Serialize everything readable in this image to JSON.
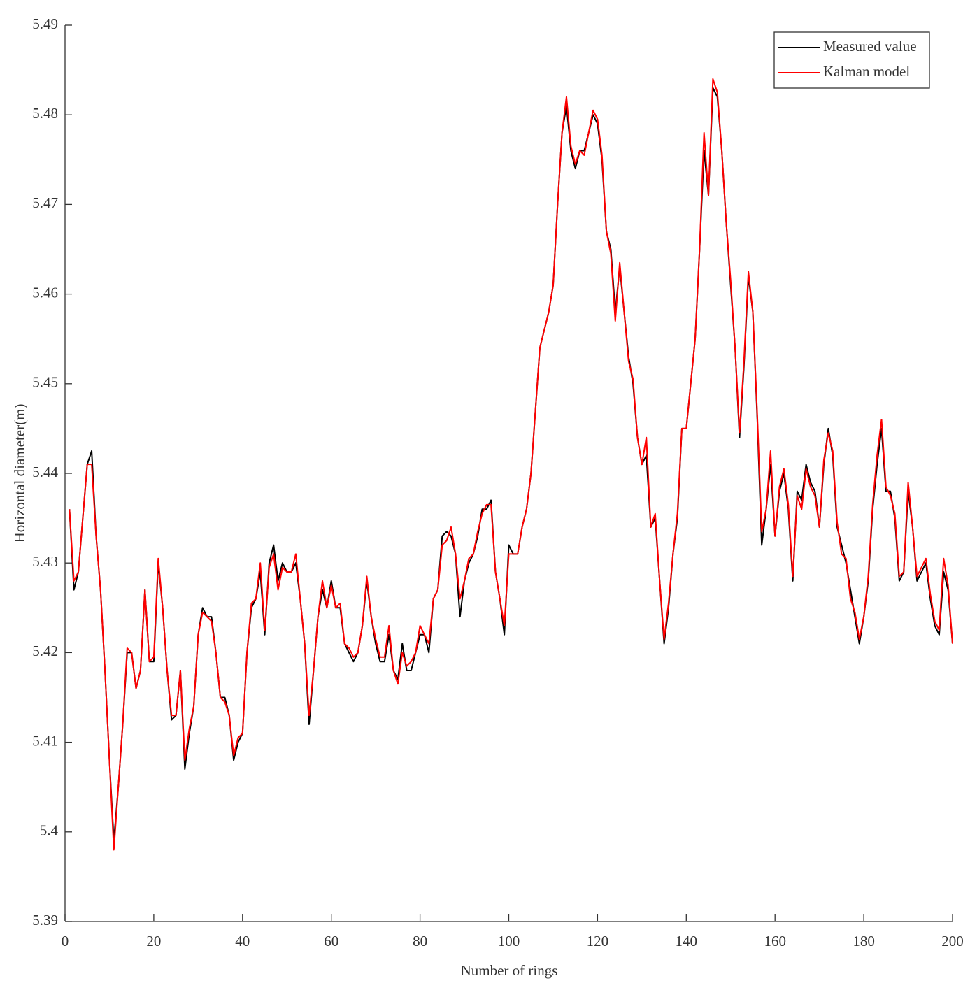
{
  "chart_data": {
    "type": "line",
    "xlabel": "Number of rings",
    "ylabel": "Horizontal diameter(m)",
    "x": [
      1,
      2,
      3,
      4,
      5,
      6,
      7,
      8,
      9,
      10,
      11,
      12,
      13,
      14,
      15,
      16,
      17,
      18,
      19,
      20,
      21,
      22,
      23,
      24,
      25,
      26,
      27,
      28,
      29,
      30,
      31,
      32,
      33,
      34,
      35,
      36,
      37,
      38,
      39,
      40,
      41,
      42,
      43,
      44,
      45,
      46,
      47,
      48,
      49,
      50,
      51,
      52,
      53,
      54,
      55,
      56,
      57,
      58,
      59,
      60,
      61,
      62,
      63,
      64,
      65,
      66,
      67,
      68,
      69,
      70,
      71,
      72,
      73,
      74,
      75,
      76,
      77,
      78,
      79,
      80,
      81,
      82,
      83,
      84,
      85,
      86,
      87,
      88,
      89,
      90,
      91,
      92,
      93,
      94,
      95,
      96,
      97,
      98,
      99,
      100,
      101,
      102,
      103,
      104,
      105,
      106,
      107,
      108,
      109,
      110,
      111,
      112,
      113,
      114,
      115,
      116,
      117,
      118,
      119,
      120,
      121,
      122,
      123,
      124,
      125,
      126,
      127,
      128,
      129,
      130,
      131,
      132,
      133,
      134,
      135,
      136,
      137,
      138,
      139,
      140,
      141,
      142,
      143,
      144,
      145,
      146,
      147,
      148,
      149,
      150,
      151,
      152,
      153,
      154,
      155,
      156,
      157,
      158,
      159,
      160,
      161,
      162,
      163,
      164,
      165,
      166,
      167,
      168,
      169,
      170,
      171,
      172,
      173,
      174,
      175,
      176,
      177,
      178,
      179,
      180,
      181,
      182,
      183,
      184,
      185,
      186,
      187,
      188,
      189,
      190,
      191,
      192,
      193,
      194,
      195,
      196,
      197,
      198,
      199,
      200
    ],
    "series": [
      {
        "name": "Measured value",
        "color": "#000000",
        "values": [
          5.436,
          5.427,
          5.429,
          5.435,
          5.441,
          5.4425,
          5.433,
          5.427,
          5.418,
          5.408,
          5.399,
          5.405,
          5.412,
          5.42,
          5.42,
          5.416,
          5.418,
          5.427,
          5.419,
          5.419,
          5.43,
          5.425,
          5.418,
          5.4125,
          5.413,
          5.418,
          5.407,
          5.411,
          5.414,
          5.422,
          5.425,
          5.424,
          5.424,
          5.42,
          5.415,
          5.415,
          5.413,
          5.408,
          5.41,
          5.411,
          5.42,
          5.425,
          5.426,
          5.429,
          5.422,
          5.43,
          5.432,
          5.428,
          5.43,
          5.429,
          5.429,
          5.43,
          5.426,
          5.421,
          5.412,
          5.418,
          5.424,
          5.427,
          5.425,
          5.428,
          5.425,
          5.425,
          5.421,
          5.42,
          5.419,
          5.42,
          5.423,
          5.428,
          5.424,
          5.421,
          5.419,
          5.419,
          5.422,
          5.418,
          5.417,
          5.421,
          5.418,
          5.418,
          5.42,
          5.422,
          5.422,
          5.42,
          5.426,
          5.427,
          5.433,
          5.4335,
          5.433,
          5.431,
          5.424,
          5.428,
          5.43,
          5.431,
          5.433,
          5.436,
          5.436,
          5.437,
          5.429,
          5.426,
          5.422,
          5.432,
          5.431,
          5.431,
          5.434,
          5.436,
          5.44,
          5.447,
          5.454,
          5.456,
          5.458,
          5.461,
          5.47,
          5.478,
          5.481,
          5.476,
          5.474,
          5.476,
          5.476,
          5.478,
          5.48,
          5.479,
          5.475,
          5.467,
          5.465,
          5.458,
          5.463,
          5.458,
          5.453,
          5.45,
          5.444,
          5.441,
          5.442,
          5.434,
          5.435,
          5.428,
          5.421,
          5.425,
          5.431,
          5.435,
          5.445,
          5.445,
          5.45,
          5.455,
          5.465,
          5.476,
          5.471,
          5.483,
          5.482,
          5.476,
          5.468,
          5.461,
          5.454,
          5.444,
          5.452,
          5.462,
          5.458,
          5.446,
          5.432,
          5.436,
          5.441,
          5.433,
          5.438,
          5.44,
          5.436,
          5.428,
          5.438,
          5.437,
          5.441,
          5.439,
          5.438,
          5.434,
          5.441,
          5.445,
          5.442,
          5.434,
          5.432,
          5.43,
          5.427,
          5.424,
          5.421,
          5.424,
          5.428,
          5.436,
          5.441,
          5.445,
          5.438,
          5.438,
          5.435,
          5.428,
          5.429,
          5.438,
          5.434,
          5.428,
          5.429,
          5.43,
          5.426,
          5.423,
          5.422,
          5.429,
          5.427,
          5.421
        ]
      },
      {
        "name": "Kalman model",
        "color": "#ff0000",
        "values": [
          5.436,
          5.428,
          5.429,
          5.435,
          5.441,
          5.441,
          5.433,
          5.427,
          5.418,
          5.408,
          5.398,
          5.405,
          5.412,
          5.4205,
          5.42,
          5.416,
          5.418,
          5.427,
          5.419,
          5.4195,
          5.4305,
          5.425,
          5.418,
          5.413,
          5.413,
          5.418,
          5.408,
          5.4115,
          5.414,
          5.422,
          5.4245,
          5.424,
          5.4235,
          5.42,
          5.415,
          5.4145,
          5.413,
          5.4085,
          5.4105,
          5.411,
          5.42,
          5.4255,
          5.426,
          5.43,
          5.4225,
          5.4295,
          5.431,
          5.427,
          5.4295,
          5.429,
          5.429,
          5.431,
          5.426,
          5.421,
          5.413,
          5.418,
          5.424,
          5.428,
          5.425,
          5.4275,
          5.425,
          5.4255,
          5.421,
          5.4205,
          5.4195,
          5.42,
          5.423,
          5.4285,
          5.424,
          5.4215,
          5.4195,
          5.4195,
          5.423,
          5.418,
          5.4165,
          5.42,
          5.4185,
          5.419,
          5.42,
          5.423,
          5.422,
          5.421,
          5.426,
          5.427,
          5.432,
          5.4325,
          5.434,
          5.431,
          5.426,
          5.428,
          5.4305,
          5.431,
          5.4335,
          5.4355,
          5.4365,
          5.4365,
          5.429,
          5.426,
          5.423,
          5.431,
          5.431,
          5.431,
          5.434,
          5.436,
          5.44,
          5.447,
          5.454,
          5.456,
          5.458,
          5.461,
          5.47,
          5.478,
          5.482,
          5.4765,
          5.4745,
          5.476,
          5.4755,
          5.478,
          5.4805,
          5.4795,
          5.4755,
          5.467,
          5.4645,
          5.457,
          5.4635,
          5.458,
          5.4525,
          5.4505,
          5.444,
          5.441,
          5.444,
          5.434,
          5.4355,
          5.428,
          5.4215,
          5.4255,
          5.431,
          5.4355,
          5.445,
          5.445,
          5.45,
          5.455,
          5.465,
          5.478,
          5.471,
          5.484,
          5.4825,
          5.476,
          5.468,
          5.4615,
          5.454,
          5.4445,
          5.4525,
          5.4625,
          5.458,
          5.4465,
          5.4335,
          5.436,
          5.4425,
          5.433,
          5.4385,
          5.4405,
          5.4365,
          5.4285,
          5.4375,
          5.436,
          5.4405,
          5.4385,
          5.4375,
          5.434,
          5.4415,
          5.4445,
          5.4425,
          5.4345,
          5.431,
          5.4305,
          5.426,
          5.4245,
          5.4215,
          5.424,
          5.4285,
          5.4365,
          5.442,
          5.446,
          5.4385,
          5.4375,
          5.4355,
          5.4285,
          5.429,
          5.439,
          5.434,
          5.4285,
          5.4295,
          5.4305,
          5.4265,
          5.4235,
          5.4225,
          5.4305,
          5.4275,
          5.421
        ]
      }
    ],
    "xlim": [
      0,
      200
    ],
    "xticks": [
      0,
      20,
      40,
      60,
      80,
      100,
      120,
      140,
      160,
      180,
      200
    ],
    "ylim": [
      5.39,
      5.49
    ],
    "yticks": [
      5.39,
      5.4,
      5.41,
      5.42,
      5.43,
      5.44,
      5.45,
      5.46,
      5.47,
      5.48,
      5.49
    ],
    "legend": "northeast",
    "grid": false
  }
}
